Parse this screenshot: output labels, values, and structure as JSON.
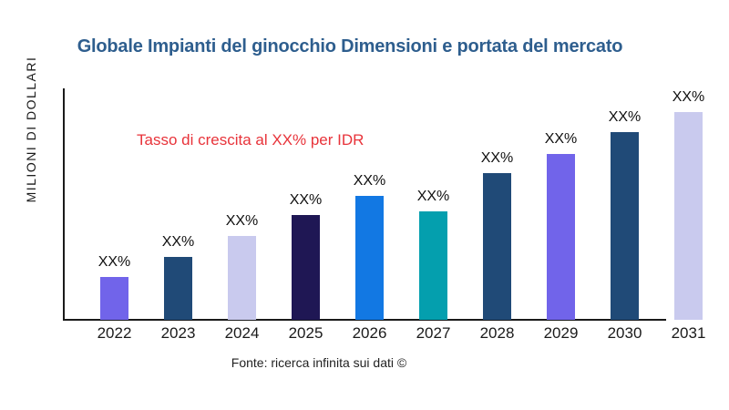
{
  "header": {
    "title": "Globale Impianti del ginocchio Dimensioni e portata del mercato",
    "title_color": "#2e5e8e"
  },
  "annotation": {
    "text": "Tasso di crescita al XX% per IDR",
    "color": "#e8333a"
  },
  "footer": {
    "source": "Fonte: ricerca infinita sui dati ©"
  },
  "chart_data": {
    "type": "bar",
    "title": "Globale Impianti del ginocchio Dimensioni e portata del mercato",
    "xlabel": "",
    "ylabel": "MILIONI DI DOLLARI",
    "categories": [
      "2022",
      "2023",
      "2024",
      "2025",
      "2026",
      "2027",
      "2028",
      "2029",
      "2030",
      "2031"
    ],
    "bar_value_labels": [
      "XX%",
      "XX%",
      "XX%",
      "XX%",
      "XX%",
      "XX%",
      "XX%",
      "XX%",
      "XX%",
      "XX%"
    ],
    "values_note": "numeric values masked as XX% in source; heights estimated from pixels",
    "relative_heights_pct_of_max": [
      20.6,
      30.3,
      40.4,
      50.4,
      59.6,
      52.2,
      70.6,
      79.8,
      90.4,
      100
    ],
    "bar_colors": [
      "#7164ea",
      "#204a77",
      "#c9caee",
      "#1f1754",
      "#1278e3",
      "#049fae",
      "#204a77",
      "#7164ea",
      "#204a77",
      "#c9caee"
    ],
    "annotation": "Tasso di crescita al XX% per IDR",
    "legend": "none",
    "grid": false,
    "axis_color": "#1a1a1a"
  }
}
